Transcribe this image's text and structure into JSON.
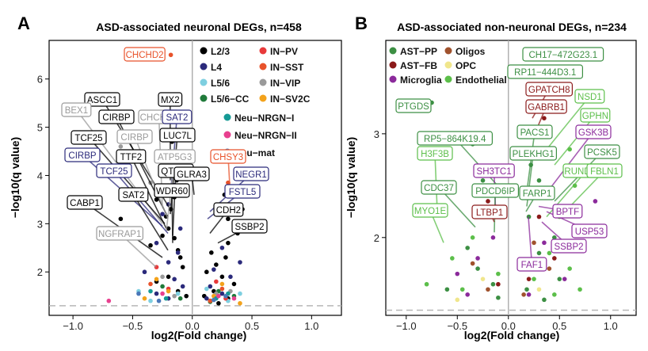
{
  "panels": [
    {
      "letter": "A",
      "title": "ASD-associated neuronal DEGs, n=458",
      "xlabel": "log2(Fold change)",
      "ylabel": "−log10(q value)",
      "legend": [
        {
          "label": "L2/3",
          "color": "#000000"
        },
        {
          "label": "L4",
          "color": "#2b2a7b"
        },
        {
          "label": "L5/6",
          "color": "#7ecfe0"
        },
        {
          "label": "L5/6−CC",
          "color": "#1f7a3a"
        },
        {
          "label": "IN−PV",
          "color": "#e8393a"
        },
        {
          "label": "IN−SST",
          "color": "#e8522a"
        },
        {
          "label": "IN−VIP",
          "color": "#9a9a9a"
        },
        {
          "label": "IN−SV2C",
          "color": "#f3a21b"
        },
        {
          "label": "Neu−NRGN−I",
          "color": "#159a95"
        },
        {
          "label": "Neu−NRGN−II",
          "color": "#e8408f"
        },
        {
          "label": "Neu−mat",
          "color": "#4a77b8"
        }
      ],
      "gene_labels": [
        {
          "text": "CHCHD2",
          "color": "#e8522a"
        },
        {
          "text": "ASCC1",
          "color": "#000000"
        },
        {
          "text": "MX2",
          "color": "#000000"
        },
        {
          "text": "BEX1",
          "color": "#9a9a9a"
        },
        {
          "text": "CIRBP",
          "color": "#000000"
        },
        {
          "text": "CHCHD2",
          "color": "#9a9a9a"
        },
        {
          "text": "SAT2",
          "color": "#2b2a7b"
        },
        {
          "text": "CIRBP",
          "color": "#9a9a9a"
        },
        {
          "text": "LUC7L",
          "color": "#000000"
        },
        {
          "text": "TCF25",
          "color": "#000000"
        },
        {
          "text": "CIRBP",
          "color": "#2b2a7b"
        },
        {
          "text": "TTF2",
          "color": "#000000"
        },
        {
          "text": "ATP5G3",
          "color": "#9a9a9a"
        },
        {
          "text": "TCF25",
          "color": "#2b2a7b"
        },
        {
          "text": "QTRT1",
          "color": "#000000"
        },
        {
          "text": "WDR60",
          "color": "#000000"
        },
        {
          "text": "SAT2",
          "color": "#000000"
        },
        {
          "text": "CABP1",
          "color": "#000000"
        },
        {
          "text": "NGFRAP1",
          "color": "#9a9a9a"
        },
        {
          "text": "CHSY3",
          "color": "#e8522a"
        },
        {
          "text": "GLRA3",
          "color": "#000000"
        },
        {
          "text": "NEGR1",
          "color": "#2b2a7b"
        },
        {
          "text": "FSTL5",
          "color": "#2b2a7b"
        },
        {
          "text": "CDH2",
          "color": "#000000"
        },
        {
          "text": "SSBP2",
          "color": "#000000"
        }
      ]
    },
    {
      "letter": "B",
      "title": "ASD-associated non-neuronal DEGs, n=234",
      "xlabel": "log2(Fold change)",
      "ylabel": "−log10(q value)",
      "legend": [
        {
          "label": "AST−PP",
          "color": "#3c8f43"
        },
        {
          "label": "Oligos",
          "color": "#a0522d"
        },
        {
          "label": "AST−FB",
          "color": "#8b1a1a"
        },
        {
          "label": "OPC",
          "color": "#f0e68c"
        },
        {
          "label": "Microglia",
          "color": "#8b2a9b"
        },
        {
          "label": "Endothelial",
          "color": "#5cbf4a"
        }
      ],
      "gene_labels": [
        {
          "text": "CH17−472G23.1",
          "color": "#3c8f43"
        },
        {
          "text": "RP11−444D3.1",
          "color": "#3c8f43"
        },
        {
          "text": "PTGDS",
          "color": "#3c8f43"
        },
        {
          "text": "GPATCH8",
          "color": "#8b1a1a"
        },
        {
          "text": "NSD1",
          "color": "#5cbf4a"
        },
        {
          "text": "GABRB1",
          "color": "#8b1a1a"
        },
        {
          "text": "GPHN",
          "color": "#5cbf4a"
        },
        {
          "text": "RP5−864K19.4",
          "color": "#3c8f43"
        },
        {
          "text": "H3F3B",
          "color": "#5cbf4a"
        },
        {
          "text": "PACS1",
          "color": "#3c8f43"
        },
        {
          "text": "SH3TC1",
          "color": "#8b2a9b"
        },
        {
          "text": "GSK3B",
          "color": "#8b2a9b"
        },
        {
          "text": "PLEKHG1",
          "color": "#3c8f43"
        },
        {
          "text": "PCSK5",
          "color": "#3c8f43"
        },
        {
          "text": "CDC37",
          "color": "#3c8f43"
        },
        {
          "text": "PDCD6IP",
          "color": "#3c8f43"
        },
        {
          "text": "RUNDC3B",
          "color": "#5cbf4a"
        },
        {
          "text": "FBLN1",
          "color": "#5cbf4a"
        },
        {
          "text": "LTBP1",
          "color": "#8b1a1a"
        },
        {
          "text": "FARP1",
          "color": "#3c8f43"
        },
        {
          "text": "MYO1E",
          "color": "#5cbf4a"
        },
        {
          "text": "BPTF",
          "color": "#8b2a9b"
        },
        {
          "text": "USP53",
          "color": "#8b2a9b"
        },
        {
          "text": "SSBP2",
          "color": "#8b2a9b"
        },
        {
          "text": "FAF1",
          "color": "#8b2a9b"
        }
      ]
    }
  ],
  "chart_data": [
    {
      "type": "scatter",
      "title": "ASD-associated neuronal DEGs, n=458",
      "xlabel": "log2(Fold change)",
      "ylabel": "−log10(q value)",
      "xlim": [
        -1.2,
        1.25
      ],
      "ylim": [
        1.1,
        6.8
      ],
      "xticks": [
        "−1.0",
        "−0.5",
        "0.0",
        "0.5",
        "1.0"
      ],
      "yticks": [
        "2",
        "3",
        "4",
        "5",
        "6"
      ],
      "threshold_y": 1.3,
      "grid": false,
      "legend_position": "top-right",
      "series": [
        {
          "name": "L2/3",
          "color": "#000000",
          "points": [
            [
              -0.17,
              4.7
            ],
            [
              -0.2,
              4.5
            ],
            [
              -0.18,
              4.2
            ],
            [
              -0.13,
              3.9
            ],
            [
              -0.15,
              3.55
            ],
            [
              -0.3,
              3.5
            ],
            [
              -0.18,
              3.3
            ],
            [
              -0.22,
              3.15
            ],
            [
              -0.6,
              3.1
            ],
            [
              -0.2,
              2.9
            ],
            [
              -0.25,
              2.75
            ],
            [
              -0.15,
              2.7
            ],
            [
              -0.35,
              2.55
            ],
            [
              -0.12,
              2.45
            ],
            [
              -0.1,
              2.3
            ],
            [
              -0.08,
              2.1
            ],
            [
              -0.2,
              1.9
            ],
            [
              -0.3,
              1.8
            ],
            [
              -0.12,
              1.6
            ],
            [
              -0.05,
              1.5
            ],
            [
              0.27,
              3.6
            ],
            [
              0.42,
              3.3
            ],
            [
              0.3,
              3.1
            ],
            [
              0.38,
              2.8
            ],
            [
              0.3,
              2.6
            ],
            [
              0.16,
              2.4
            ],
            [
              0.28,
              2.3
            ],
            [
              0.2,
              2.15
            ],
            [
              0.12,
              2.0
            ],
            [
              0.25,
              1.9
            ],
            [
              0.35,
              1.75
            ],
            [
              0.18,
              1.6
            ],
            [
              0.1,
              1.5
            ],
            [
              0.3,
              1.45
            ],
            [
              0.22,
              1.35
            ],
            [
              0.15,
              1.4
            ]
          ]
        },
        {
          "name": "L4",
          "color": "#2b2a7b",
          "points": [
            [
              -0.15,
              3.8
            ],
            [
              -0.2,
              3.4
            ],
            [
              -0.25,
              3.2
            ],
            [
              -0.1,
              2.9
            ],
            [
              -0.3,
              2.6
            ],
            [
              -0.12,
              2.4
            ],
            [
              -0.2,
              2.2
            ],
            [
              -0.4,
              2.0
            ],
            [
              -0.15,
              1.85
            ],
            [
              -0.08,
              1.7
            ],
            [
              -0.3,
              1.55
            ],
            [
              -0.2,
              1.45
            ],
            [
              0.35,
              3.7
            ],
            [
              0.38,
              3.25
            ],
            [
              0.25,
              2.5
            ],
            [
              0.4,
              2.2
            ],
            [
              0.18,
              2.05
            ],
            [
              0.32,
              1.9
            ],
            [
              0.15,
              1.7
            ],
            [
              0.25,
              1.55
            ],
            [
              0.12,
              1.45
            ]
          ]
        },
        {
          "name": "L5/6",
          "color": "#7ecfe0",
          "points": [
            [
              -0.45,
              1.6
            ],
            [
              -0.35,
              1.4
            ],
            [
              -0.12,
              1.55
            ],
            [
              0.2,
              1.5
            ],
            [
              0.3,
              1.4
            ],
            [
              0.12,
              1.65
            ],
            [
              0.4,
              1.55
            ]
          ]
        },
        {
          "name": "L5/6−CC",
          "color": "#1f7a3a",
          "points": [
            [
              -0.25,
              1.7
            ],
            [
              -0.1,
              1.45
            ],
            [
              0.22,
              1.6
            ],
            [
              0.35,
              1.5
            ],
            [
              0.15,
              1.38
            ]
          ]
        },
        {
          "name": "IN−PV",
          "color": "#e8393a",
          "points": [
            [
              -0.3,
              2.1
            ],
            [
              -0.2,
              1.65
            ],
            [
              0.2,
              1.8
            ],
            [
              0.28,
              1.45
            ]
          ]
        },
        {
          "name": "IN−SST",
          "color": "#e8522a",
          "points": [
            [
              -0.18,
              6.5
            ],
            [
              -0.35,
              1.75
            ],
            [
              0.3,
              3.85
            ],
            [
              0.25,
              1.65
            ],
            [
              0.15,
              1.4
            ]
          ]
        },
        {
          "name": "IN−VIP",
          "color": "#9a9a9a",
          "points": [
            [
              -0.6,
              4.6
            ],
            [
              -0.35,
              3.85
            ],
            [
              -0.55,
              2.85
            ],
            [
              -0.25,
              1.9
            ],
            [
              -0.15,
              1.5
            ],
            [
              0.2,
              1.55
            ],
            [
              0.32,
              1.6
            ]
          ]
        },
        {
          "name": "IN−SV2C",
          "color": "#f3a21b",
          "points": [
            [
              -0.3,
              1.85
            ],
            [
              -0.2,
              1.6
            ],
            [
              -0.4,
              1.45
            ],
            [
              0.25,
              1.75
            ],
            [
              0.18,
              1.5
            ],
            [
              0.4,
              1.35
            ]
          ]
        },
        {
          "name": "Neu−NRGN−I",
          "color": "#159a95",
          "points": [
            [
              -0.35,
              1.6
            ],
            [
              -0.22,
              1.45
            ],
            [
              0.3,
              1.55
            ],
            [
              0.2,
              1.45
            ]
          ]
        },
        {
          "name": "Neu−NRGN−II",
          "color": "#e8408f",
          "points": [
            [
              -0.7,
              1.4
            ],
            [
              -0.25,
              1.55
            ],
            [
              0.22,
              1.5
            ],
            [
              0.35,
              1.45
            ]
          ]
        },
        {
          "name": "Neu−mat",
          "color": "#4a77b8",
          "points": [
            [
              -0.45,
              1.55
            ],
            [
              -0.28,
              1.4
            ],
            [
              0.28,
              1.5
            ],
            [
              0.18,
              1.42
            ]
          ]
        }
      ]
    },
    {
      "type": "scatter",
      "title": "ASD-associated non-neuronal DEGs, n=234",
      "xlabel": "log2(Fold change)",
      "ylabel": "−log10(q value)",
      "xlim": [
        -1.2,
        1.25
      ],
      "ylim": [
        1.25,
        3.9
      ],
      "xticks": [
        "−1.0",
        "−0.5",
        "0.0",
        "0.5",
        "1.0"
      ],
      "yticks": [
        "2",
        "3"
      ],
      "threshold_y": 1.3,
      "grid": false,
      "legend_position": "top-left",
      "series": [
        {
          "name": "AST−PP",
          "color": "#3c8f43",
          "points": [
            [
              -0.75,
              3.3
            ],
            [
              0.18,
              3.75
            ],
            [
              0.25,
              3.6
            ],
            [
              -0.35,
              2.9
            ],
            [
              -0.25,
              2.55
            ],
            [
              -0.2,
              2.2
            ],
            [
              -0.4,
              1.9
            ],
            [
              -0.3,
              1.7
            ],
            [
              -0.15,
              1.55
            ],
            [
              -0.6,
              1.5
            ],
            [
              0.22,
              2.7
            ],
            [
              0.3,
              2.55
            ],
            [
              0.35,
              2.4
            ],
            [
              0.2,
              2.2
            ],
            [
              0.45,
              2.0
            ],
            [
              0.3,
              1.85
            ],
            [
              0.25,
              1.7
            ],
            [
              0.5,
              1.6
            ],
            [
              0.18,
              1.5
            ],
            [
              0.35,
              1.4
            ],
            [
              -0.1,
              1.42
            ]
          ]
        },
        {
          "name": "Oligos",
          "color": "#a0522d",
          "points": [
            [
              -0.35,
              1.75
            ],
            [
              -0.2,
              1.5
            ],
            [
              0.25,
              1.95
            ],
            [
              0.4,
              1.7
            ],
            [
              0.15,
              1.45
            ]
          ]
        },
        {
          "name": "AST−FB",
          "color": "#8b1a1a",
          "points": [
            [
              0.35,
              3.15
            ],
            [
              0.35,
              3.0
            ],
            [
              -0.2,
              2.35
            ],
            [
              0.3,
              2.2
            ],
            [
              0.45,
              1.8
            ],
            [
              0.2,
              1.6
            ],
            [
              -0.1,
              1.55
            ]
          ]
        },
        {
          "name": "OPC",
          "color": "#f0e68c",
          "points": [
            [
              -0.5,
              1.4
            ],
            [
              0.3,
              1.5
            ],
            [
              -0.25,
              1.6
            ]
          ]
        },
        {
          "name": "Microglia",
          "color": "#8b2a9b",
          "points": [
            [
              0.9,
              3.0
            ],
            [
              0.85,
              2.35
            ],
            [
              0.7,
              2.1
            ],
            [
              0.35,
              1.95
            ],
            [
              0.3,
              1.75
            ],
            [
              -0.15,
              2.0
            ],
            [
              -0.3,
              1.8
            ],
            [
              -0.5,
              1.65
            ],
            [
              0.55,
              1.6
            ],
            [
              0.2,
              1.45
            ],
            [
              -0.4,
              1.45
            ]
          ]
        },
        {
          "name": "Endothelial",
          "color": "#5cbf4a",
          "points": [
            [
              0.6,
              2.85
            ],
            [
              0.65,
              2.5
            ],
            [
              0.55,
              2.3
            ],
            [
              0.5,
              2.2
            ],
            [
              -0.35,
              2.0
            ],
            [
              -0.55,
              1.8
            ],
            [
              -0.8,
              1.55
            ],
            [
              -0.45,
              1.5
            ],
            [
              0.4,
              1.85
            ],
            [
              0.6,
              1.7
            ],
            [
              0.25,
              1.6
            ],
            [
              0.7,
              1.5
            ],
            [
              0.45,
              1.45
            ],
            [
              -0.1,
              1.65
            ],
            [
              0.15,
              1.75
            ]
          ]
        }
      ]
    }
  ]
}
